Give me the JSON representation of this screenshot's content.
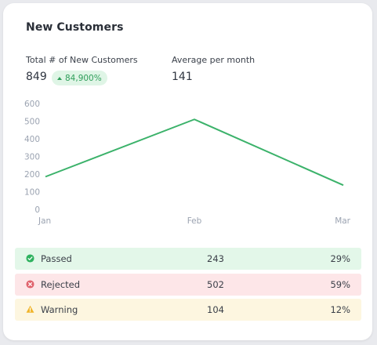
{
  "card": {
    "title": "New Customers"
  },
  "stats": {
    "total_label": "Total # of New Customers",
    "total_value": "849",
    "growth_badge": "84,900%",
    "average_label": "Average per month",
    "average_value": "141"
  },
  "colors": {
    "line": "#3bb26a",
    "passed": "#2fb25f",
    "rejected": "#e0646e",
    "warning": "#f0b429"
  },
  "chart_data": {
    "type": "line",
    "categories": [
      "Jan",
      "Feb",
      "Mar"
    ],
    "series": [
      {
        "values": [
          185,
          510,
          137
        ]
      }
    ],
    "y_ticks": [
      "0",
      "100",
      "200",
      "300",
      "400",
      "500",
      "600"
    ],
    "ylim": [
      0,
      600
    ],
    "grid": false
  },
  "status_rows": [
    {
      "icon": "check-circle-icon",
      "label": "Passed",
      "count": "243",
      "percent": "29%"
    },
    {
      "icon": "x-circle-icon",
      "label": "Rejected",
      "count": "502",
      "percent": "59%"
    },
    {
      "icon": "warning-triangle-icon",
      "label": "Warning",
      "count": "104",
      "percent": "12%"
    }
  ]
}
